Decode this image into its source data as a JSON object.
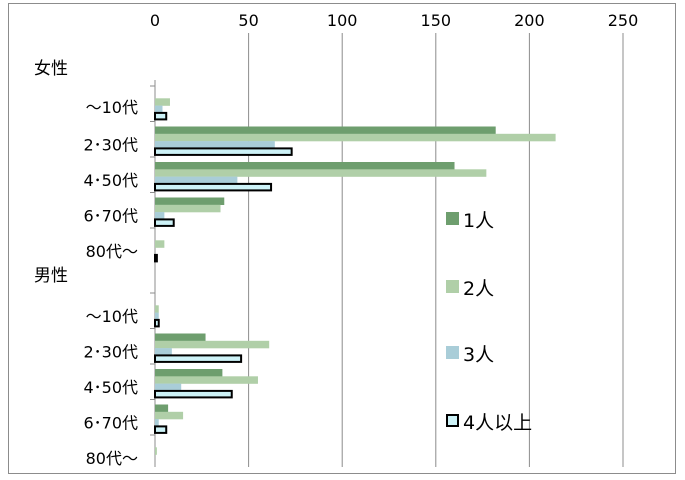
{
  "chart_data": {
    "type": "bar",
    "orientation": "horizontal",
    "title": "",
    "xlabel": "",
    "ylabel": "",
    "xlim": [
      0,
      250
    ],
    "x_ticks": [
      0,
      50,
      100,
      150,
      200,
      250
    ],
    "x_axis_position": "top",
    "grid": true,
    "legend_placement": "right",
    "groups": [
      {
        "label": "女性",
        "categories": [
          "～10代",
          "2･30代",
          "4･50代",
          "6･70代",
          "80代～"
        ]
      },
      {
        "label": "男性",
        "categories": [
          "～10代",
          "2･30代",
          "4･50代",
          "6･70代",
          "80代～"
        ]
      }
    ],
    "series": [
      {
        "name": "1人",
        "color": "#6e9e6e",
        "values": [
          0,
          182,
          160,
          37,
          0,
          0,
          27,
          36,
          7,
          0
        ],
        "group_values": [
          [
            0,
            182,
            160,
            37,
            0
          ],
          [
            0,
            27,
            36,
            7,
            0
          ]
        ]
      },
      {
        "name": "2人",
        "color": "#b0cfa8",
        "values": [
          8,
          214,
          177,
          35,
          5,
          2,
          61,
          55,
          15,
          1
        ],
        "group_values": [
          [
            8,
            214,
            177,
            35,
            5
          ],
          [
            2,
            61,
            55,
            15,
            1
          ]
        ]
      },
      {
        "name": "3人",
        "color": "#a9cdd8",
        "values": [
          4,
          64,
          44,
          5,
          0,
          2,
          9,
          14,
          2,
          0
        ],
        "group_values": [
          [
            4,
            64,
            44,
            5,
            0
          ],
          [
            2,
            9,
            14,
            2,
            0
          ]
        ]
      },
      {
        "name": "4人以上",
        "color": "#cdf2f7",
        "outline": "#000000",
        "values": [
          6,
          73,
          62,
          10,
          1,
          2,
          46,
          41,
          6,
          0
        ],
        "group_values": [
          [
            6,
            73,
            62,
            10,
            1
          ],
          [
            2,
            46,
            41,
            6,
            0
          ]
        ]
      }
    ]
  }
}
